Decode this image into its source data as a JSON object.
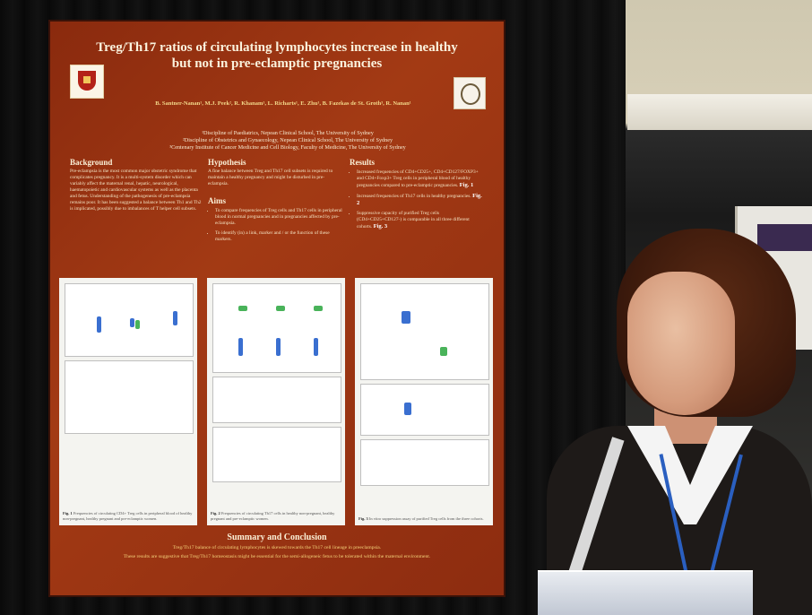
{
  "poster": {
    "title": "Treg/Th17 ratios of circulating lymphocytes increase in healthy but not in pre-eclamptic pregnancies",
    "authors": "B. Santner-Nanan¹, M.J. Peek², R. Khanam¹, L. Richarts¹, E. Zhu¹, B. Fazekas de St. Groth³, R. Nanan¹",
    "affiliations": [
      "¹Discipline of Paediatrics, Nepean Clinical School, The University of Sydney",
      "²Discipline of Obstetrics and Gynaecology, Nepean Clinical School, The University of Sydney",
      "³Centenary Institute of Cancer Medicine and Cell Biology, Faculty of Medicine, The University of Sydney"
    ],
    "background": {
      "heading": "Background",
      "text": "Pre-eclampsia is the most common major obstetric syndrome that complicates pregnancy. It is a multi-system disorder which can variably affect the maternal renal, hepatic, neurological, haematopoietic and cardiovascular systems as well as the placenta and fetus. Understanding of the pathogenesis of pre-eclampsia remains poor. It has been suggested a balance between Th1 and Th2 is implicated, possibly due to imbalances of T helper cell subsets."
    },
    "hypothesis": {
      "heading": "Hypothesis",
      "text": "A fine balance between Treg and Th17 cell subsets is required to maintain a healthy pregnancy and might be disturbed in pre-eclampsia."
    },
    "aims": {
      "heading": "Aims",
      "items": [
        "To compare frequencies of Treg cells and Th17 cells in peripheral blood in normal pregnancies and in pregnancies affected by pre-eclampsia.",
        "To identify (in) a link, marker and / or the function of these markers."
      ]
    },
    "results": {
      "heading": "Results",
      "items": [
        {
          "text": "Increased frequencies of CD4+CD25+, CD4+CD127/FOXP3+ and CD4+Foxp3+ Treg cells in peripheral blood of healthy pregnancies compared to pre-eclamptic pregnancies.",
          "fig": "Fig. 1"
        },
        {
          "text": "Increased frequencies of Th17 cells in healthy pregnancies.",
          "fig": "Fig. 2"
        },
        {
          "text": "Suppressive capacity of purified Treg cells (CD4+CD25+CD127-) is comparable in all three different cohorts.",
          "fig": "Fig. 3"
        }
      ]
    },
    "figures": [
      {
        "caption_label": "Fig. 1",
        "caption": "Frequencies of circulating CD4+ Treg cells in peripheral blood of healthy non-pregnant, healthy pregnant and pre-eclamptic women."
      },
      {
        "caption_label": "Fig. 2",
        "caption": "Frequencies of circulating Th17 cells in healthy non-pregnant, healthy pregnant and pre-eclamptic women."
      },
      {
        "caption_label": "Fig. 3",
        "caption": "In vitro suppression assay of purified Treg cells from the three cohorts."
      }
    ],
    "summary": {
      "heading": "Summary and Conclusion",
      "line1": "Treg/Th17 balance of circulating lymphocytes is skewed towards the Th17 cell lineage in preeclampsia.",
      "line2": "These results are suggestive that Treg/Th17 homeostasis might be essential for the semi-allogeneic fetus to be tolerated within the maternal environment."
    }
  },
  "colors": {
    "poster_bg": "#a33a14",
    "title_text": "#fbf3de",
    "author_text": "#f3d88a",
    "lanyard": "#2a5fc0"
  },
  "icons": [
    "university-crest-icon",
    "partner-seal-icon"
  ]
}
